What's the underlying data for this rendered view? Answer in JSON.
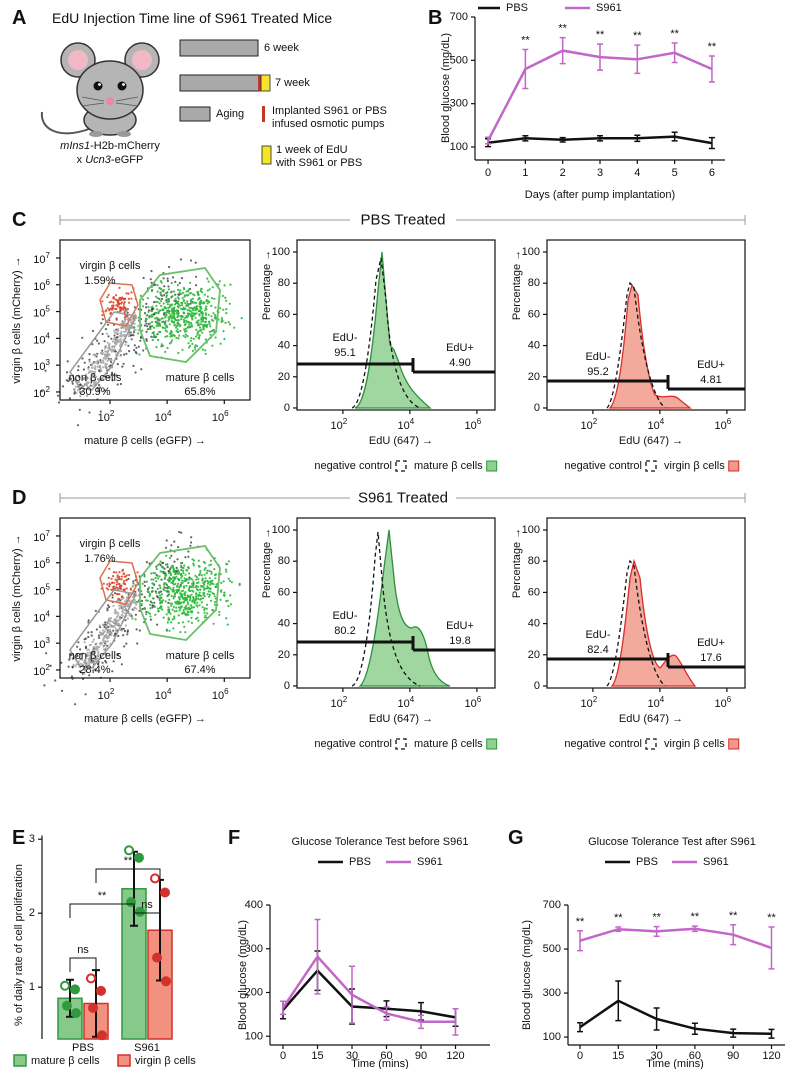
{
  "panels": [
    "A",
    "B",
    "C",
    "D",
    "E",
    "F",
    "G"
  ],
  "timeline": {
    "title": "EdU Injection Time line of S961 Treated Mice",
    "strain": {
      "gene1": "mIns1",
      "rest1": "-H2b-mCherry",
      "prefix2": "x ",
      "gene2": "Ucn3",
      "rest2": "-eGFP"
    },
    "bars": [
      "6 week",
      "7 week"
    ],
    "legend": {
      "aging": "Aging",
      "pump": [
        "Implanted S961 or PBS",
        "infused osmotic pumps"
      ],
      "edu": [
        "1 week of EdU",
        "with S961 or PBS"
      ]
    }
  },
  "flow": {
    "log_base": "10",
    "scatter_xticks": [
      2,
      4,
      6
    ],
    "scatter_yticks": [
      2,
      3,
      4,
      5,
      6,
      7
    ],
    "scatter_xlim": [
      0.25,
      6.9
    ],
    "scatter_ylim": [
      1.7,
      7.67
    ],
    "hist_xticks": [
      2,
      4,
      6
    ],
    "hist_yticks": [
      0,
      20,
      40,
      60,
      80,
      100
    ],
    "hist_xlim": [
      0.63,
      6.54
    ],
    "hist_ylim": [
      -1.3,
      107.7
    ],
    "scatter_xlabel": "mature β cells (eGFP) →",
    "scatter_ylabel": "virgin β cells (mCherry) →",
    "hist_xlabel": "EdU (647) →",
    "hist_ylabel": "Percentage →",
    "negative_control": "negative control",
    "sections": [
      {
        "title": "PBS Treated",
        "gates": [
          {
            "name": "virgin β cells",
            "percent": "1.59%"
          },
          {
            "name": "non β cells",
            "percent": "30.9%"
          },
          {
            "name": "mature β cells",
            "percent": "65.8%"
          }
        ],
        "hist": [
          {
            "neg_label": "EdU-",
            "neg_value": "95.1",
            "pos_label": "EdU+",
            "pos_value": "4.90",
            "cells": "mature β cells"
          },
          {
            "neg_label": "EdU-",
            "neg_value": "95.2",
            "pos_label": "EdU+",
            "pos_value": "4.81",
            "cells": "virgin β cells"
          }
        ]
      },
      {
        "title": "S961 Treated",
        "gates": [
          {
            "name": "virgin β cells",
            "percent": "1.76%"
          },
          {
            "name": "non β cells",
            "percent": "28.4%"
          },
          {
            "name": "mature β cells",
            "percent": "67.4%"
          }
        ],
        "hist": [
          {
            "neg_label": "EdU-",
            "neg_value": "80.2",
            "pos_label": "EdU+",
            "pos_value": "19.8",
            "cells": "mature β cells"
          },
          {
            "neg_label": "EdU-",
            "neg_value": "82.4",
            "pos_label": "EdU+",
            "pos_value": "17.6",
            "cells": "virgin β cells"
          }
        ]
      }
    ]
  },
  "chart_data": [
    {
      "type": "line",
      "xlabel": "Days (after pump implantation)",
      "ylabel": "Blood glucose (mg/dL)",
      "x": [
        0,
        1,
        2,
        3,
        4,
        5,
        6
      ],
      "xlim": [
        -0.35,
        6.35
      ],
      "xticks": [
        0,
        1,
        2,
        3,
        4,
        5,
        6
      ],
      "ylim": [
        40,
        700
      ],
      "yticks": [
        100,
        300,
        500,
        700
      ],
      "legend": "top",
      "series": [
        {
          "name": "PBS",
          "color": "#111111",
          "values": [
            120,
            140,
            133,
            140,
            140,
            148,
            118
          ],
          "errors": [
            18,
            12,
            10,
            12,
            14,
            20,
            25
          ]
        },
        {
          "name": "S961",
          "color": "#c366c9",
          "values": [
            130,
            460,
            545,
            515,
            505,
            535,
            460
          ],
          "errors": [
            15,
            90,
            60,
            60,
            65,
            45,
            60
          ]
        }
      ],
      "annotations": [
        null,
        "**",
        "**",
        "**",
        "**",
        "**",
        "**"
      ]
    },
    {
      "type": "bar",
      "ylabel": "% of daily rate of cell proliferation",
      "categories": [
        "PBS",
        "S961"
      ],
      "ylim": [
        0.3,
        3.05
      ],
      "yticks": [
        1,
        2,
        3
      ],
      "legend": "bottom",
      "series": [
        {
          "name": "mature β cells",
          "color": "#86c98a",
          "edge": "#2f9a3f",
          "values": [
            0.85,
            2.33
          ],
          "errors": [
            0.25,
            0.5
          ],
          "points": [
            [
              1.02,
              0.97,
              0.75,
              0.65
            ],
            [
              2.85,
              2.75,
              2.15,
              2.02
            ]
          ]
        },
        {
          "name": "virgin β cells",
          "color": "#f2917f",
          "edge": "#d4302c",
          "values": [
            0.78,
            1.77
          ],
          "errors": [
            0.45,
            0.68
          ],
          "points": [
            [
              1.12,
              0.95,
              0.72,
              0.35
            ],
            [
              2.47,
              2.28,
              1.4,
              1.08
            ]
          ]
        }
      ],
      "brackets": [
        "ns",
        "ns",
        "**",
        "**"
      ]
    },
    {
      "type": "line",
      "title": "Glucose Tolerance Test  before S961",
      "xlabel": "Time (mins)",
      "ylabel": "Blood glucose (mg/dL)",
      "categories": [
        0,
        15,
        30,
        60,
        90,
        120
      ],
      "ylim": [
        80,
        400
      ],
      "yticks": [
        100,
        200,
        300,
        400
      ],
      "legend": "top",
      "series": [
        {
          "name": "PBS",
          "color": "#111111",
          "values": [
            160,
            250,
            168,
            163,
            157,
            143
          ],
          "errors": [
            20,
            45,
            40,
            18,
            20,
            20
          ]
        },
        {
          "name": "S961",
          "color": "#c366c9",
          "values": [
            165,
            282,
            195,
            152,
            133,
            133
          ],
          "errors": [
            15,
            85,
            65,
            15,
            15,
            30
          ]
        }
      ]
    },
    {
      "type": "line",
      "title": "Glucose Tolerance Test  after S961",
      "xlabel": "Time (mins)",
      "ylabel": "Blood glucose (mg/dL)",
      "categories": [
        0,
        15,
        30,
        60,
        90,
        120
      ],
      "ylim": [
        64,
        700
      ],
      "yticks": [
        100,
        300,
        500,
        700
      ],
      "legend": "top",
      "series": [
        {
          "name": "PBS",
          "color": "#111111",
          "values": [
            145,
            265,
            182,
            138,
            118,
            115
          ],
          "errors": [
            20,
            90,
            50,
            25,
            18,
            20
          ]
        },
        {
          "name": "S961",
          "color": "#c366c9",
          "values": [
            538,
            590,
            580,
            592,
            565,
            505
          ],
          "errors": [
            45,
            10,
            22,
            12,
            45,
            95
          ]
        }
      ],
      "annotations": [
        "**",
        "**",
        "**",
        "**",
        "**",
        "**"
      ]
    }
  ]
}
